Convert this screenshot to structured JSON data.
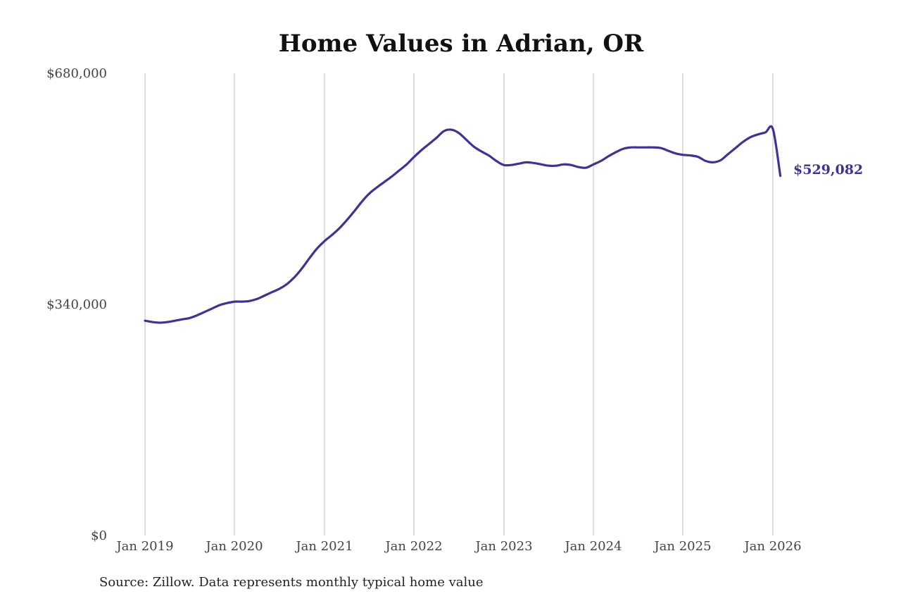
{
  "colors": {
    "series": "#3b3399",
    "grid": "#bdbdbd",
    "title": "#111111",
    "tick": "#444444"
  },
  "chart_data": {
    "type": "line",
    "title": "Home Values in Adrian, OR",
    "xlabel": "",
    "ylabel": "",
    "grid": "vertical",
    "x_ticks": [
      "Jan 2019",
      "Jan 2020",
      "Jan 2021",
      "Jan 2022",
      "Jan 2023",
      "Jan 2024",
      "Jan 2025",
      "Jan 2026"
    ],
    "y_ticks": [
      "$0",
      "$340,000",
      "$680,000"
    ],
    "y_tick_values": [
      0,
      340000,
      680000
    ],
    "ylim": [
      0,
      680000
    ],
    "xlim": [
      "2019-01",
      "2026-02"
    ],
    "end_label": "$529,082",
    "series": [
      {
        "x": [
          "2019-01",
          "2019-02",
          "2019-03",
          "2019-04",
          "2019-05",
          "2019-06",
          "2019-07",
          "2019-08",
          "2019-09",
          "2019-10",
          "2019-11",
          "2019-12",
          "2020-01",
          "2020-02",
          "2020-03",
          "2020-04",
          "2020-05",
          "2020-06",
          "2020-07",
          "2020-08",
          "2020-09",
          "2020-10",
          "2020-11",
          "2020-12",
          "2021-01",
          "2021-02",
          "2021-03",
          "2021-04",
          "2021-05",
          "2021-06",
          "2021-07",
          "2021-08",
          "2021-09",
          "2021-10",
          "2021-11",
          "2021-12",
          "2022-01",
          "2022-02",
          "2022-03",
          "2022-04",
          "2022-05",
          "2022-06",
          "2022-07",
          "2022-08",
          "2022-09",
          "2022-10",
          "2022-11",
          "2022-12",
          "2023-01",
          "2023-02",
          "2023-03",
          "2023-04",
          "2023-05",
          "2023-06",
          "2023-07",
          "2023-08",
          "2023-09",
          "2023-10",
          "2023-11",
          "2023-12",
          "2024-01",
          "2024-02",
          "2024-03",
          "2024-04",
          "2024-05",
          "2024-06",
          "2024-07",
          "2024-08",
          "2024-09",
          "2024-10",
          "2024-11",
          "2024-12",
          "2025-01",
          "2025-02",
          "2025-03",
          "2025-04",
          "2025-05",
          "2025-06",
          "2025-07",
          "2025-08",
          "2025-09",
          "2025-10",
          "2025-11",
          "2025-12",
          "2026-01",
          "2026-02"
        ],
        "values": [
          316000,
          314000,
          313000,
          314000,
          316000,
          318000,
          320000,
          324000,
          329000,
          334000,
          339000,
          342000,
          344000,
          344000,
          345000,
          348000,
          353000,
          358000,
          363000,
          370000,
          380000,
          393000,
          408000,
          422000,
          433000,
          442000,
          452000,
          464000,
          477000,
          491000,
          503000,
          512000,
          520000,
          528000,
          537000,
          546000,
          557000,
          567000,
          576000,
          585000,
          595000,
          597000,
          592000,
          582000,
          572000,
          565000,
          559000,
          551000,
          545000,
          545000,
          547000,
          549000,
          548000,
          546000,
          544000,
          544000,
          546000,
          545000,
          542000,
          541000,
          546000,
          551000,
          558000,
          564000,
          569000,
          571000,
          571000,
          571000,
          571000,
          570000,
          566000,
          562000,
          560000,
          559000,
          557000,
          551000,
          549000,
          552000,
          561000,
          570000,
          579000,
          586000,
          590000,
          593000,
          598000,
          529082
        ]
      }
    ]
  },
  "source": "Source: Zillow. Data represents monthly typical home value"
}
